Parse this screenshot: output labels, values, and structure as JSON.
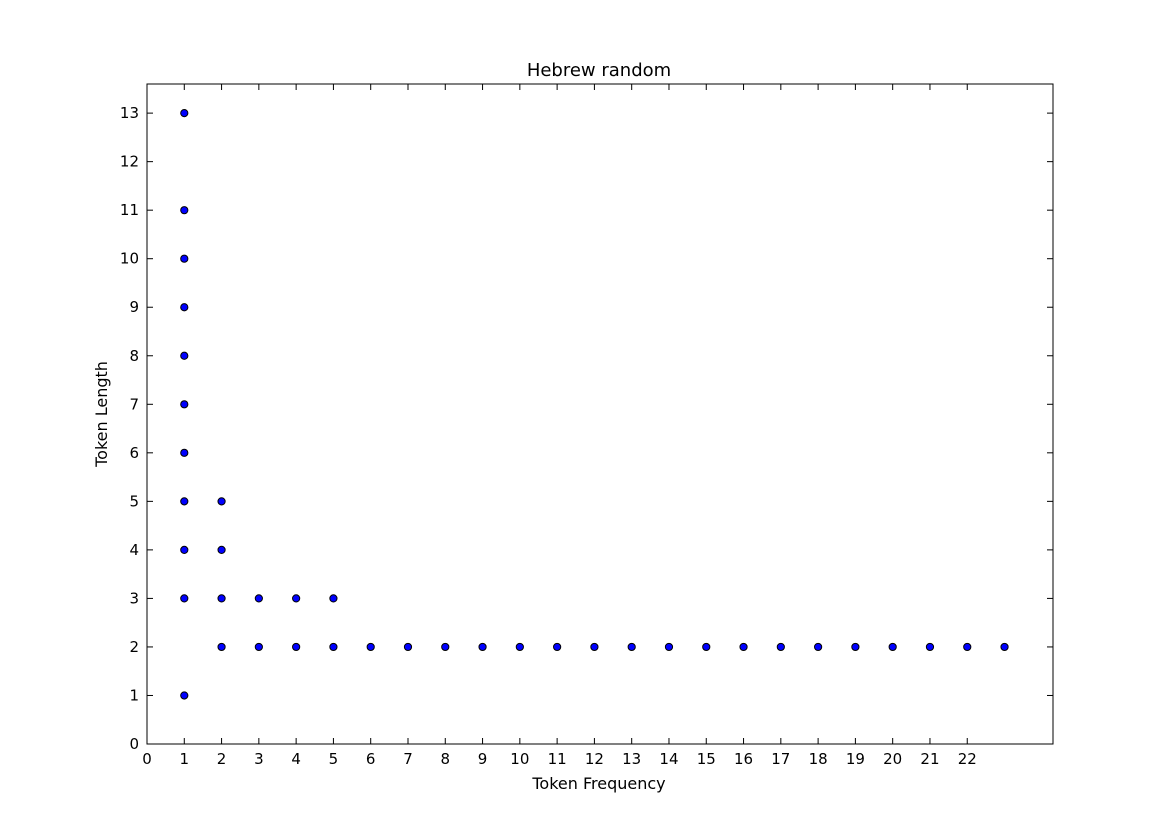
{
  "chart_data": {
    "type": "scatter",
    "title": "Hebrew random",
    "xlabel": "Token Frequency",
    "ylabel": "Token Length",
    "xlim": [
      0,
      24.3
    ],
    "ylim": [
      0,
      13.6
    ],
    "xticks": [
      0,
      1,
      2,
      3,
      4,
      5,
      6,
      7,
      8,
      9,
      10,
      11,
      12,
      13,
      14,
      15,
      16,
      17,
      18,
      19,
      20,
      21,
      22
    ],
    "yticks": [
      0,
      1,
      2,
      3,
      4,
      5,
      6,
      7,
      8,
      9,
      10,
      11,
      12,
      13
    ],
    "grid": false,
    "marker_color": "#0000ff",
    "marker_edge_color": "#000000",
    "points": [
      [
        1,
        13
      ],
      [
        1,
        11
      ],
      [
        1,
        10
      ],
      [
        1,
        9
      ],
      [
        1,
        8
      ],
      [
        1,
        7
      ],
      [
        1,
        6
      ],
      [
        1,
        5
      ],
      [
        1,
        4
      ],
      [
        1,
        3
      ],
      [
        1,
        1
      ],
      [
        2,
        5
      ],
      [
        2,
        4
      ],
      [
        2,
        3
      ],
      [
        3,
        3
      ],
      [
        4,
        3
      ],
      [
        5,
        3
      ],
      [
        2,
        2
      ],
      [
        3,
        2
      ],
      [
        4,
        2
      ],
      [
        5,
        2
      ],
      [
        6,
        2
      ],
      [
        7,
        2
      ],
      [
        8,
        2
      ],
      [
        9,
        2
      ],
      [
        10,
        2
      ],
      [
        11,
        2
      ],
      [
        12,
        2
      ],
      [
        13,
        2
      ],
      [
        14,
        2
      ],
      [
        15,
        2
      ],
      [
        16,
        2
      ],
      [
        17,
        2
      ],
      [
        18,
        2
      ],
      [
        19,
        2
      ],
      [
        20,
        2
      ],
      [
        21,
        2
      ],
      [
        22,
        2
      ],
      [
        23,
        2
      ]
    ]
  }
}
